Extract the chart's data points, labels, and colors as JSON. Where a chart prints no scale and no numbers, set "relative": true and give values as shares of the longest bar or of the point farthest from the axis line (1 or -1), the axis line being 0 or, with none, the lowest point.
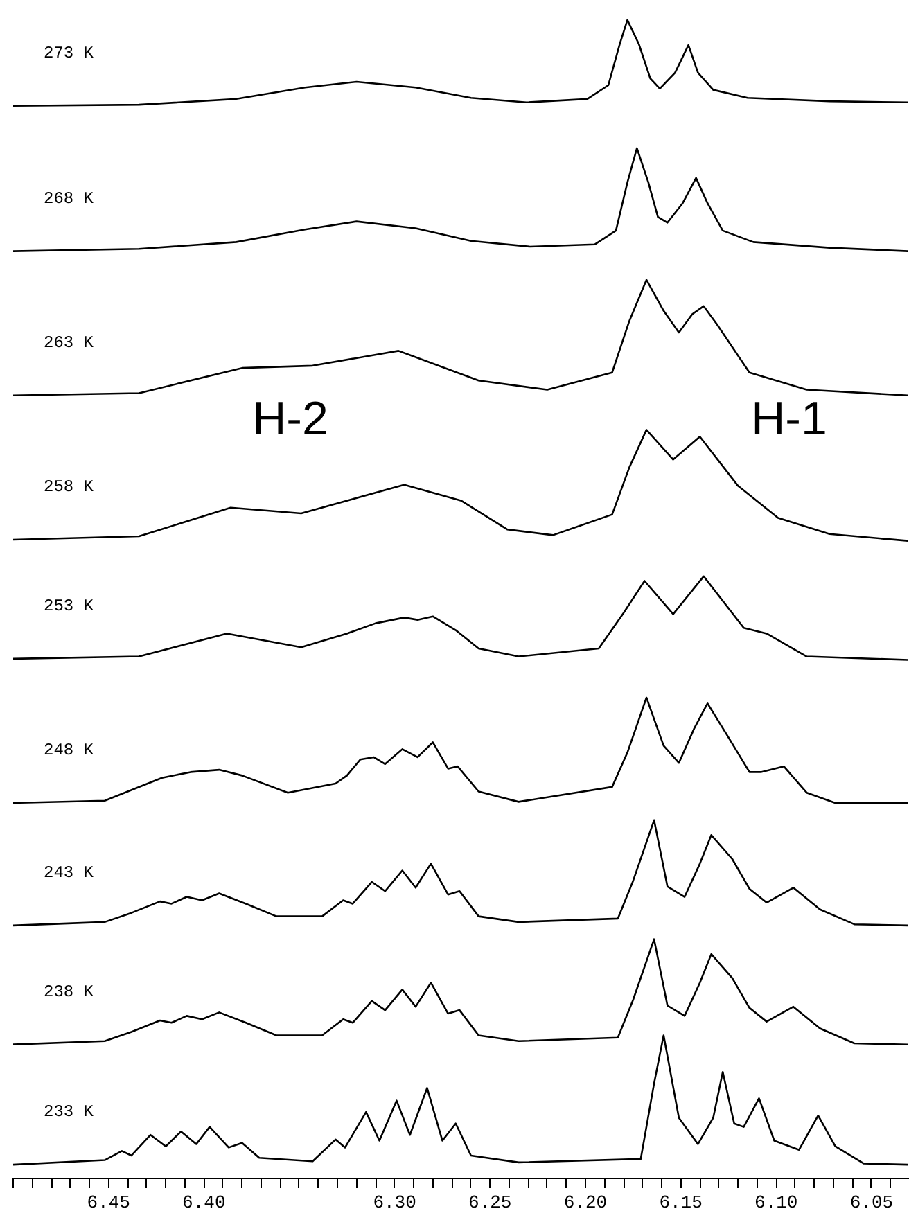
{
  "chart_data": {
    "type": "line",
    "relative": true,
    "xlim": [
      6.5,
      6.03
    ],
    "xticks": [
      {
        "value": 6.5,
        "label": null
      },
      {
        "value": 6.49,
        "label": null
      },
      {
        "value": 6.48,
        "label": null
      },
      {
        "value": 6.47,
        "label": null
      },
      {
        "value": 6.46,
        "label": null
      },
      {
        "value": 6.45,
        "label": "6.45"
      },
      {
        "value": 6.44,
        "label": null
      },
      {
        "value": 6.43,
        "label": null
      },
      {
        "value": 6.42,
        "label": null
      },
      {
        "value": 6.41,
        "label": null
      },
      {
        "value": 6.4,
        "label": "6.40"
      },
      {
        "value": 6.39,
        "label": null
      },
      {
        "value": 6.38,
        "label": null
      },
      {
        "value": 6.37,
        "label": null
      },
      {
        "value": 6.36,
        "label": null
      },
      {
        "value": 6.35,
        "label": null
      },
      {
        "value": 6.34,
        "label": null
      },
      {
        "value": 6.33,
        "label": null
      },
      {
        "value": 6.32,
        "label": null
      },
      {
        "value": 6.31,
        "label": null
      },
      {
        "value": 6.3,
        "label": "6.30"
      },
      {
        "value": 6.29,
        "label": null
      },
      {
        "value": 6.28,
        "label": null
      },
      {
        "value": 6.27,
        "label": null
      },
      {
        "value": 6.26,
        "label": null
      },
      {
        "value": 6.25,
        "label": "6.25"
      },
      {
        "value": 6.24,
        "label": null
      },
      {
        "value": 6.23,
        "label": null
      },
      {
        "value": 6.22,
        "label": null
      },
      {
        "value": 6.21,
        "label": null
      },
      {
        "value": 6.2,
        "label": "6.20"
      },
      {
        "value": 6.19,
        "label": null
      },
      {
        "value": 6.18,
        "label": null
      },
      {
        "value": 6.17,
        "label": null
      },
      {
        "value": 6.16,
        "label": null
      },
      {
        "value": 6.15,
        "label": "6.15"
      },
      {
        "value": 6.14,
        "label": null
      },
      {
        "value": 6.13,
        "label": null
      },
      {
        "value": 6.12,
        "label": null
      },
      {
        "value": 6.11,
        "label": null
      },
      {
        "value": 6.1,
        "label": "6.10"
      },
      {
        "value": 6.09,
        "label": null
      },
      {
        "value": 6.08,
        "label": null
      },
      {
        "value": 6.07,
        "label": null
      },
      {
        "value": 6.06,
        "label": null
      },
      {
        "value": 6.05,
        "label": "6.05"
      },
      {
        "value": 6.04,
        "label": null
      }
    ],
    "annotations": [
      "H-2",
      "H-1"
    ],
    "series": [
      {
        "name": "273 K",
        "color": "#000000",
        "x": [
          6.5,
          6.434,
          6.383,
          6.347,
          6.32,
          6.289,
          6.26,
          6.231,
          6.199,
          6.188,
          6.182,
          6.178,
          6.172,
          6.166,
          6.161,
          6.153,
          6.146,
          6.141,
          6.133,
          6.115,
          6.072,
          6.031
        ],
        "values": [
          0.925,
          0.926,
          0.931,
          0.941,
          0.946,
          0.941,
          0.932,
          0.928,
          0.931,
          0.943,
          0.979,
          1.0,
          0.979,
          0.949,
          0.94,
          0.954,
          0.978,
          0.954,
          0.939,
          0.932,
          0.929,
          0.928
        ]
      },
      {
        "name": "268 K",
        "color": "#000000",
        "x": [
          6.5,
          6.434,
          6.383,
          6.347,
          6.32,
          6.289,
          6.26,
          6.229,
          6.195,
          6.184,
          6.178,
          6.173,
          6.167,
          6.162,
          6.157,
          6.149,
          6.142,
          6.136,
          6.128,
          6.112,
          6.072,
          6.031
        ],
        "values": [
          0.798,
          0.8,
          0.806,
          0.817,
          0.824,
          0.818,
          0.807,
          0.802,
          0.804,
          0.816,
          0.858,
          0.888,
          0.858,
          0.828,
          0.823,
          0.84,
          0.862,
          0.84,
          0.816,
          0.806,
          0.801,
          0.798
        ]
      },
      {
        "name": "263 K",
        "color": "#000000",
        "x": [
          6.5,
          6.434,
          6.38,
          6.343,
          6.298,
          6.256,
          6.22,
          6.186,
          6.177,
          6.168,
          6.159,
          6.151,
          6.144,
          6.138,
          6.131,
          6.114,
          6.084,
          6.031
        ],
        "values": [
          0.672,
          0.674,
          0.696,
          0.698,
          0.711,
          0.685,
          0.677,
          0.692,
          0.737,
          0.773,
          0.746,
          0.727,
          0.743,
          0.75,
          0.734,
          0.692,
          0.677,
          0.672
        ]
      },
      {
        "name": "258 K",
        "color": "#000000",
        "x": [
          6.5,
          6.434,
          6.386,
          6.349,
          6.295,
          6.265,
          6.241,
          6.217,
          6.186,
          6.177,
          6.168,
          6.154,
          6.14,
          6.12,
          6.099,
          6.072,
          6.031
        ],
        "values": [
          0.546,
          0.549,
          0.574,
          0.569,
          0.594,
          0.58,
          0.555,
          0.55,
          0.568,
          0.609,
          0.642,
          0.616,
          0.636,
          0.593,
          0.565,
          0.551,
          0.545
        ]
      },
      {
        "name": "253 K",
        "color": "#000000",
        "x": [
          6.5,
          6.434,
          6.388,
          6.349,
          6.325,
          6.31,
          6.295,
          6.288,
          6.28,
          6.268,
          6.256,
          6.235,
          6.193,
          6.18,
          6.169,
          6.154,
          6.138,
          6.117,
          6.105,
          6.084,
          6.031
        ],
        "values": [
          0.442,
          0.444,
          0.464,
          0.452,
          0.464,
          0.473,
          0.478,
          0.476,
          0.479,
          0.467,
          0.451,
          0.444,
          0.451,
          0.482,
          0.51,
          0.481,
          0.514,
          0.469,
          0.464,
          0.444,
          0.441
        ]
      },
      {
        "name": "248 K",
        "color": "#000000",
        "x": [
          6.5,
          6.452,
          6.422,
          6.407,
          6.392,
          6.38,
          6.356,
          6.331,
          6.325,
          6.318,
          6.311,
          6.305,
          6.296,
          6.288,
          6.28,
          6.272,
          6.267,
          6.256,
          6.235,
          6.186,
          6.178,
          6.168,
          6.159,
          6.151,
          6.143,
          6.136,
          6.126,
          6.114,
          6.108,
          6.096,
          6.084,
          6.069,
          6.031
        ],
        "values": [
          0.316,
          0.318,
          0.338,
          0.343,
          0.345,
          0.34,
          0.325,
          0.333,
          0.34,
          0.354,
          0.356,
          0.35,
          0.363,
          0.356,
          0.369,
          0.346,
          0.348,
          0.326,
          0.317,
          0.33,
          0.36,
          0.408,
          0.366,
          0.351,
          0.381,
          0.403,
          0.376,
          0.343,
          0.343,
          0.348,
          0.325,
          0.316,
          0.316
        ]
      },
      {
        "name": "243 K",
        "color": "#000000",
        "x": [
          6.5,
          6.452,
          6.438,
          6.423,
          6.417,
          6.409,
          6.401,
          6.392,
          6.378,
          6.362,
          6.338,
          6.327,
          6.322,
          6.312,
          6.305,
          6.296,
          6.289,
          6.281,
          6.272,
          6.266,
          6.256,
          6.235,
          6.183,
          6.175,
          6.164,
          6.157,
          6.148,
          6.14,
          6.134,
          6.123,
          6.114,
          6.105,
          6.091,
          6.077,
          6.059,
          6.031
        ],
        "values": [
          0.209,
          0.212,
          0.22,
          0.23,
          0.228,
          0.234,
          0.231,
          0.237,
          0.228,
          0.217,
          0.217,
          0.231,
          0.228,
          0.247,
          0.239,
          0.257,
          0.242,
          0.263,
          0.236,
          0.239,
          0.217,
          0.212,
          0.215,
          0.248,
          0.301,
          0.243,
          0.234,
          0.263,
          0.288,
          0.267,
          0.241,
          0.229,
          0.242,
          0.223,
          0.21,
          0.209
        ]
      },
      {
        "name": "238 K",
        "color": "#000000",
        "x": [
          6.5,
          6.452,
          6.438,
          6.423,
          6.417,
          6.409,
          6.401,
          6.392,
          6.378,
          6.362,
          6.338,
          6.327,
          6.322,
          6.312,
          6.305,
          6.296,
          6.289,
          6.281,
          6.272,
          6.266,
          6.256,
          6.235,
          6.183,
          6.175,
          6.164,
          6.157,
          6.148,
          6.14,
          6.134,
          6.123,
          6.114,
          6.105,
          6.091,
          6.077,
          6.059,
          6.031
        ],
        "values": [
          0.105,
          0.108,
          0.116,
          0.126,
          0.124,
          0.13,
          0.127,
          0.133,
          0.124,
          0.113,
          0.113,
          0.127,
          0.124,
          0.143,
          0.135,
          0.153,
          0.138,
          0.159,
          0.132,
          0.135,
          0.113,
          0.108,
          0.111,
          0.144,
          0.197,
          0.139,
          0.13,
          0.159,
          0.184,
          0.163,
          0.137,
          0.125,
          0.138,
          0.119,
          0.106,
          0.105
        ]
      },
      {
        "name": "233 K",
        "color": "#000000",
        "x": [
          6.5,
          6.452,
          6.443,
          6.438,
          6.428,
          6.42,
          6.412,
          6.404,
          6.397,
          6.387,
          6.38,
          6.371,
          6.343,
          6.331,
          6.326,
          6.315,
          6.308,
          6.299,
          6.292,
          6.283,
          6.275,
          6.268,
          6.26,
          6.235,
          6.171,
          6.164,
          6.159,
          6.151,
          6.141,
          6.133,
          6.128,
          6.122,
          6.117,
          6.109,
          6.101,
          6.088,
          6.078,
          6.069,
          6.054,
          6.031
        ],
        "values": [
          0.0,
          0.004,
          0.012,
          0.008,
          0.026,
          0.016,
          0.029,
          0.018,
          0.033,
          0.015,
          0.019,
          0.006,
          0.003,
          0.022,
          0.015,
          0.046,
          0.021,
          0.056,
          0.026,
          0.067,
          0.021,
          0.036,
          0.008,
          0.002,
          0.005,
          0.071,
          0.113,
          0.041,
          0.018,
          0.041,
          0.081,
          0.036,
          0.033,
          0.058,
          0.021,
          0.013,
          0.043,
          0.016,
          0.001,
          0.0
        ]
      }
    ]
  }
}
